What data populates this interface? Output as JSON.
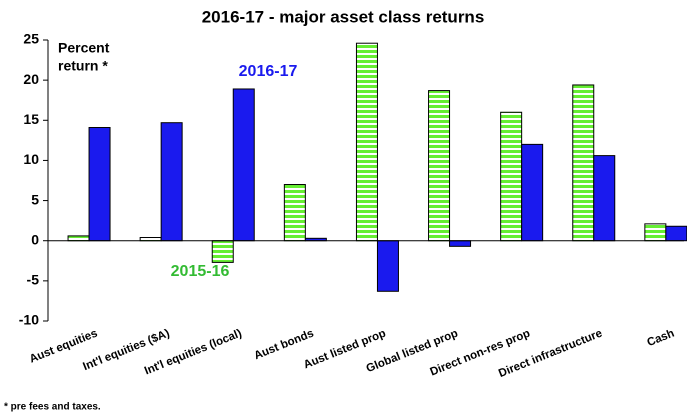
{
  "chart_data": {
    "type": "bar",
    "title": "2016-17 - major asset class returns",
    "y_label_lines": [
      "Percent",
      "return *"
    ],
    "footnote": "* pre fees and taxes.",
    "categories": [
      "Aust equities",
      "Int'l equities ($A)",
      "Int'l equities (local)",
      "Aust bonds",
      "Aust listed prop",
      "Global listed prop",
      "Direct non-res prop",
      "Direct infrastructure",
      "Cash"
    ],
    "series": [
      {
        "name": "2015-16",
        "color": "#66ee33",
        "pattern": "stripes",
        "values": [
          0.6,
          0.4,
          -2.7,
          7.0,
          24.6,
          18.7,
          16.0,
          19.4,
          2.1
        ]
      },
      {
        "name": "2016-17",
        "color": "#1a1aee",
        "values": [
          14.1,
          14.7,
          18.9,
          0.3,
          -6.3,
          -0.7,
          12.0,
          10.6,
          1.8
        ]
      }
    ],
    "ylim": [
      -10,
      25
    ],
    "yticks": [
      -10,
      -5,
      0,
      5,
      10,
      15,
      20,
      25
    ],
    "grid": false
  }
}
